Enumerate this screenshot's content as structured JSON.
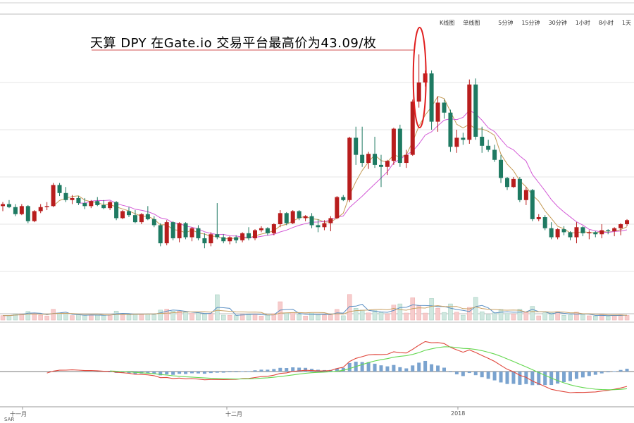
{
  "annotation": {
    "text": "天算 DPY 在Gate.io 交易平台最高价为43.09/枚"
  },
  "toolbar": {
    "tabs": [
      {
        "label": "K线图",
        "active": true
      },
      {
        "label": "单线图",
        "active": false
      },
      {
        "label": "5分钟",
        "active": false
      },
      {
        "label": "15分钟",
        "active": false
      },
      {
        "label": "30分钟",
        "active": false
      },
      {
        "label": "1小时",
        "active": false
      },
      {
        "label": "8小时",
        "active": false
      },
      {
        "label": "1天",
        "active": true
      }
    ]
  },
  "xaxis": {
    "labels": [
      "十一月",
      "十二月",
      "2018"
    ]
  },
  "corner_label": "SAR",
  "colors": {
    "up": "#b81d1d",
    "down": "#1e7a62",
    "ma_short": "#c49a55",
    "ma_long": "#d35ad6",
    "vol_up": "#f6cccc",
    "vol_down": "#cfe7df",
    "vol_line1": "#5a8fc4",
    "vol_line2": "#c9a063",
    "dif": "#e0473c",
    "dea": "#62d74d",
    "hist": "#7aa3cf",
    "highlight": "#e01e1e"
  },
  "chart_data": {
    "type": "candlestick",
    "title": "",
    "highlight_high": 43.09,
    "candles": [
      [
        28.0,
        28.4,
        27.5,
        28.2
      ],
      [
        28.2,
        28.6,
        27.8,
        27.9
      ],
      [
        27.9,
        28.2,
        27.0,
        27.2
      ],
      [
        27.2,
        28.2,
        27.1,
        28.0
      ],
      [
        28.0,
        28.1,
        26.3,
        26.5
      ],
      [
        26.5,
        27.6,
        26.4,
        27.5
      ],
      [
        27.5,
        28.2,
        27.3,
        27.9
      ],
      [
        27.9,
        28.4,
        27.6,
        28.0
      ],
      [
        28.0,
        30.3,
        27.9,
        30.1
      ],
      [
        30.1,
        30.3,
        29.0,
        29.3
      ],
      [
        29.3,
        29.9,
        28.4,
        28.6
      ],
      [
        28.6,
        29.1,
        28.2,
        28.8
      ],
      [
        28.8,
        29.0,
        28.1,
        28.3
      ],
      [
        28.3,
        28.8,
        27.7,
        28.0
      ],
      [
        28.0,
        28.6,
        27.8,
        28.5
      ],
      [
        28.5,
        28.9,
        28.0,
        28.1
      ],
      [
        28.1,
        28.6,
        27.7,
        27.8
      ],
      [
        27.8,
        28.5,
        27.6,
        28.4
      ],
      [
        28.4,
        28.5,
        26.6,
        26.8
      ],
      [
        26.8,
        27.6,
        26.7,
        27.5
      ],
      [
        27.5,
        27.9,
        26.9,
        27.1
      ],
      [
        27.1,
        27.6,
        26.3,
        26.4
      ],
      [
        26.4,
        27.3,
        26.2,
        27.2
      ],
      [
        27.2,
        28.0,
        26.6,
        26.7
      ],
      [
        26.7,
        27.0,
        25.9,
        26.1
      ],
      [
        26.1,
        26.3,
        24.0,
        24.3
      ],
      [
        24.3,
        26.6,
        24.1,
        26.4
      ],
      [
        26.4,
        26.5,
        24.6,
        24.8
      ],
      [
        24.8,
        26.4,
        24.4,
        26.3
      ],
      [
        26.3,
        26.4,
        24.7,
        24.9
      ],
      [
        24.9,
        25.9,
        24.5,
        25.8
      ],
      [
        25.8,
        26.1,
        24.6,
        24.8
      ],
      [
        24.8,
        25.3,
        23.8,
        24.3
      ],
      [
        24.3,
        25.4,
        24.0,
        25.2
      ],
      [
        25.2,
        28.3,
        24.7,
        24.9
      ],
      [
        24.9,
        25.2,
        24.3,
        24.5
      ],
      [
        24.5,
        25.0,
        24.2,
        24.9
      ],
      [
        24.9,
        25.1,
        24.3,
        24.6
      ],
      [
        24.6,
        25.4,
        24.4,
        25.3
      ],
      [
        25.3,
        25.9,
        24.6,
        24.8
      ],
      [
        24.8,
        25.7,
        24.6,
        25.6
      ],
      [
        25.6,
        26.0,
        25.4,
        25.8
      ],
      [
        25.8,
        25.9,
        25.1,
        25.3
      ],
      [
        25.3,
        26.3,
        25.1,
        26.2
      ],
      [
        26.2,
        27.6,
        25.9,
        27.3
      ],
      [
        27.3,
        27.4,
        26.1,
        26.3
      ],
      [
        26.3,
        27.6,
        26.2,
        27.5
      ],
      [
        27.5,
        27.6,
        26.6,
        26.8
      ],
      [
        26.8,
        27.1,
        26.5,
        27.0
      ],
      [
        27.0,
        27.3,
        25.8,
        26.1
      ],
      [
        26.1,
        26.7,
        25.4,
        25.9
      ],
      [
        25.9,
        26.6,
        25.6,
        26.3
      ],
      [
        26.3,
        27.0,
        25.5,
        26.8
      ],
      [
        26.8,
        29.0,
        26.7,
        28.9
      ],
      [
        28.9,
        29.1,
        28.5,
        28.6
      ],
      [
        28.6,
        34.9,
        28.4,
        34.8
      ],
      [
        34.8,
        35.9,
        32.1,
        33.1
      ],
      [
        33.1,
        35.9,
        31.9,
        32.3
      ],
      [
        32.3,
        33.4,
        31.7,
        33.2
      ],
      [
        33.2,
        34.9,
        31.8,
        32.1
      ],
      [
        32.1,
        33.1,
        29.9,
        31.9
      ],
      [
        31.9,
        32.6,
        31.1,
        32.5
      ],
      [
        32.5,
        35.8,
        32.1,
        35.7
      ],
      [
        35.7,
        36.1,
        31.9,
        32.3
      ],
      [
        32.3,
        33.6,
        31.8,
        33.1
      ],
      [
        33.1,
        38.6,
        33.0,
        38.4
      ],
      [
        38.4,
        43.09,
        37.8,
        40.3
      ],
      [
        40.3,
        41.5,
        39.9,
        41.2
      ],
      [
        41.2,
        41.5,
        35.6,
        36.4
      ],
      [
        36.4,
        38.9,
        35.4,
        38.3
      ],
      [
        38.3,
        38.6,
        36.7,
        37.3
      ],
      [
        37.3,
        37.6,
        33.4,
        33.9
      ],
      [
        33.9,
        35.6,
        33.3,
        34.8
      ],
      [
        34.8,
        35.3,
        34.1,
        34.6
      ],
      [
        34.6,
        40.6,
        34.2,
        40.1
      ],
      [
        40.1,
        40.7,
        34.6,
        34.9
      ],
      [
        34.9,
        35.9,
        33.3,
        34.0
      ],
      [
        34.0,
        34.6,
        33.4,
        33.6
      ],
      [
        33.6,
        34.1,
        32.4,
        32.6
      ],
      [
        32.6,
        33.1,
        30.3,
        30.8
      ],
      [
        30.8,
        30.9,
        29.6,
        29.9
      ],
      [
        29.9,
        30.9,
        29.8,
        30.7
      ],
      [
        30.7,
        30.9,
        28.4,
        28.6
      ],
      [
        28.6,
        29.9,
        28.1,
        29.6
      ],
      [
        29.6,
        29.7,
        26.5,
        26.7
      ],
      [
        26.7,
        27.2,
        26.5,
        26.9
      ],
      [
        26.9,
        27.1,
        25.6,
        25.8
      ],
      [
        25.8,
        26.4,
        24.7,
        24.9
      ],
      [
        24.9,
        25.8,
        24.7,
        25.7
      ],
      [
        25.7,
        26.0,
        25.1,
        25.4
      ],
      [
        25.4,
        25.5,
        24.6,
        24.9
      ],
      [
        24.9,
        26.4,
        24.3,
        25.9
      ],
      [
        25.9,
        26.0,
        25.0,
        25.3
      ],
      [
        25.3,
        25.6,
        24.7,
        25.4
      ],
      [
        25.4,
        25.5,
        24.9,
        25.2
      ],
      [
        25.2,
        26.2,
        24.8,
        25.6
      ],
      [
        25.6,
        25.7,
        25.2,
        25.5
      ],
      [
        25.5,
        25.9,
        25.0,
        25.8
      ],
      [
        25.8,
        26.3,
        25.1,
        26.2
      ],
      [
        26.2,
        26.7,
        26.0,
        26.6
      ]
    ]
  }
}
